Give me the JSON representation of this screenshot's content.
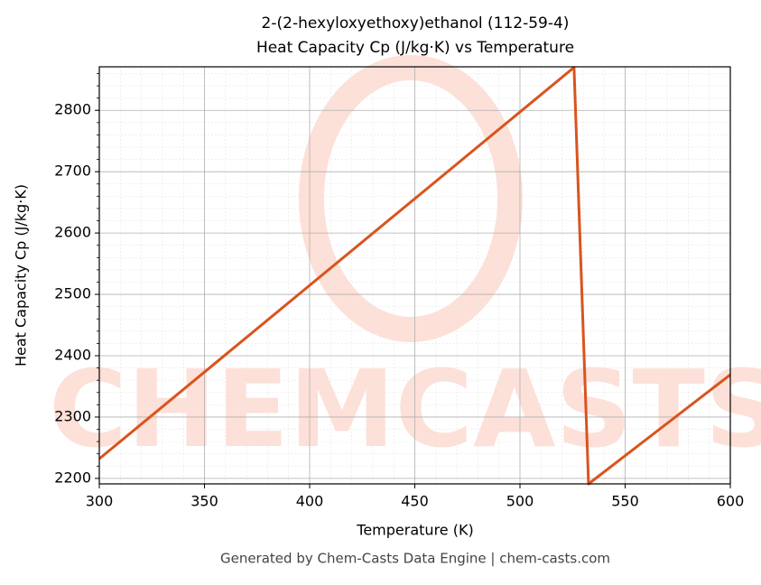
{
  "chart_data": {
    "type": "line",
    "title": "2-(2-hexyloxyethoxy)ethanol (112-59-4)",
    "subtitle": "Heat Capacity Cp (J/kg·K) vs Temperature",
    "x_label": "Temperature (K)",
    "y_label": "Heat Capacity Cp (J/kg·K)",
    "footer": "Generated by Chem-Casts Data Engine | chem-casts.com",
    "watermark": "CHEMCASTS",
    "x": [
      300,
      525.7,
      532.6,
      600
    ],
    "values": [
      2232,
      2870,
      2191,
      2369
    ],
    "color": "#d9541e",
    "xlim": [
      300,
      600
    ],
    "xticks": [
      300,
      350,
      400,
      450,
      500,
      550,
      600
    ],
    "ylim": [
      2191,
      2871
    ],
    "yticks": [
      2200,
      2300,
      2400,
      2500,
      2600,
      2700,
      2800
    ],
    "grid": true,
    "minor_grid": true
  }
}
